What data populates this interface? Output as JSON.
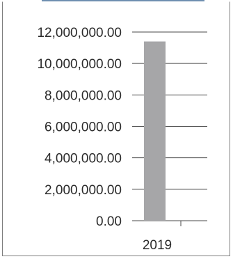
{
  "chart_data": {
    "type": "bar",
    "categories": [
      "2019"
    ],
    "series": [
      {
        "values": [
          11400000
        ]
      }
    ],
    "title": "",
    "xlabel": "",
    "ylabel": "",
    "ylim": [
      0,
      12000000
    ],
    "yticks": [
      "0.00",
      "2,000,000.00",
      "4,000,000.00",
      "6,000,000.00",
      "8,000,000.00",
      "10,000,000.00",
      "12,000,000.00"
    ],
    "grid": true,
    "bar_color": "#a6a6a8",
    "grid_color": "#4a4a4a"
  }
}
